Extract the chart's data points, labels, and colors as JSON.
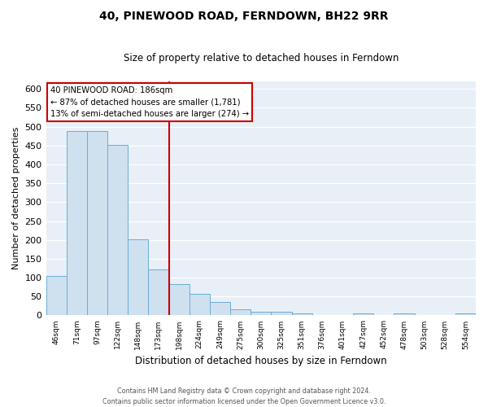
{
  "title": "40, PINEWOOD ROAD, FERNDOWN, BH22 9RR",
  "subtitle": "Size of property relative to detached houses in Ferndown",
  "xlabel": "Distribution of detached houses by size in Ferndown",
  "ylabel": "Number of detached properties",
  "bar_labels": [
    "46sqm",
    "71sqm",
    "97sqm",
    "122sqm",
    "148sqm",
    "173sqm",
    "198sqm",
    "224sqm",
    "249sqm",
    "275sqm",
    "300sqm",
    "325sqm",
    "351sqm",
    "376sqm",
    "401sqm",
    "427sqm",
    "452sqm",
    "478sqm",
    "503sqm",
    "528sqm",
    "554sqm"
  ],
  "bar_heights": [
    105,
    488,
    488,
    452,
    202,
    122,
    83,
    57,
    36,
    15,
    10,
    10,
    5,
    0,
    0,
    5,
    0,
    5,
    0,
    0,
    5
  ],
  "bar_color": "#cfe0ef",
  "bar_edge_color": "#6baed6",
  "ylim": [
    0,
    620
  ],
  "yticks": [
    0,
    50,
    100,
    150,
    200,
    250,
    300,
    350,
    400,
    450,
    500,
    550,
    600
  ],
  "vline_x": 6.0,
  "vline_color": "#cc0000",
  "annotation_title": "40 PINEWOOD ROAD: 186sqm",
  "annotation_line1": "← 87% of detached houses are smaller (1,781)",
  "annotation_line2": "13% of semi-detached houses are larger (274) →",
  "annotation_box_color": "#ffffff",
  "annotation_box_edge": "#cc0000",
  "footer_line1": "Contains HM Land Registry data © Crown copyright and database right 2024.",
  "footer_line2": "Contains public sector information licensed under the Open Government Licence v3.0.",
  "fig_bg_color": "#ffffff",
  "plot_bg_color": "#e8eff6"
}
